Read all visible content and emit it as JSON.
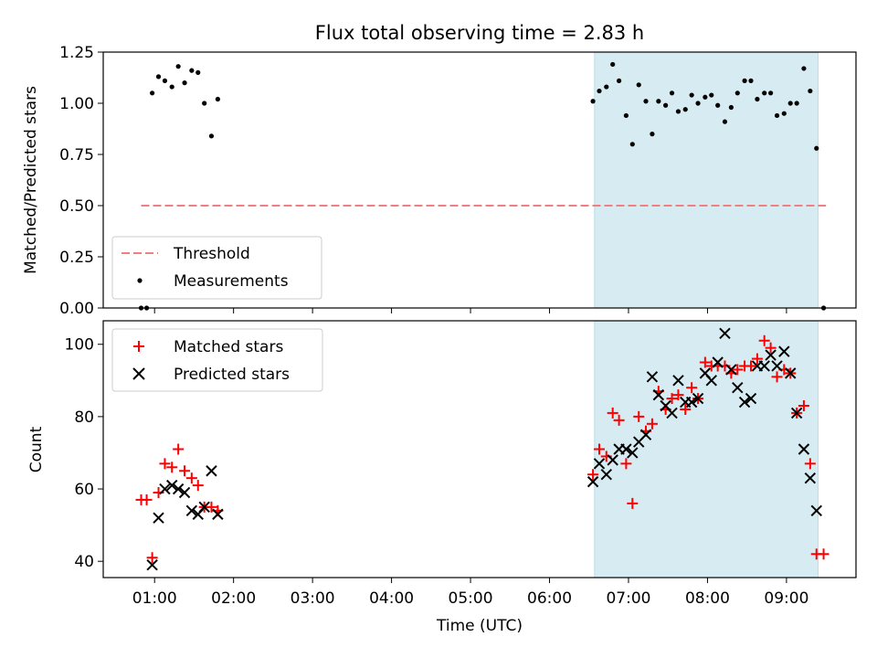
{
  "chart_data": [
    {
      "type": "scatter",
      "panel": "top",
      "title": "Flux total observing time = 2.83 h",
      "xlabel": "",
      "ylabel": "Matched/Predicted stars",
      "ylim": [
        0,
        1.25
      ],
      "yticks": [
        "0.00",
        "0.25",
        "0.50",
        "0.75",
        "1.00",
        "1.25"
      ],
      "shaded_region": {
        "x_start_hours": 6.57,
        "x_end_hours": 9.4,
        "color": "#add8e6"
      },
      "threshold": {
        "name": "Threshold",
        "y": 0.5,
        "x_start_hours": 0.83,
        "x_end_hours": 9.5,
        "color": "#f08080"
      },
      "legend_position": "lower-left",
      "series": [
        {
          "name": "Measurements",
          "color": "#000000",
          "marker": "dot",
          "points": [
            [
              0.83,
              0.0
            ],
            [
              0.9,
              0.0
            ],
            [
              0.97,
              1.05
            ],
            [
              1.05,
              1.13
            ],
            [
              1.13,
              1.11
            ],
            [
              1.22,
              1.08
            ],
            [
              1.3,
              1.18
            ],
            [
              1.38,
              1.1
            ],
            [
              1.47,
              1.16
            ],
            [
              1.55,
              1.15
            ],
            [
              1.63,
              1.0
            ],
            [
              1.72,
              0.84
            ],
            [
              1.8,
              1.02
            ],
            [
              6.55,
              1.01
            ],
            [
              6.63,
              1.06
            ],
            [
              6.72,
              1.08
            ],
            [
              6.8,
              1.19
            ],
            [
              6.88,
              1.11
            ],
            [
              6.97,
              0.94
            ],
            [
              7.05,
              0.8
            ],
            [
              7.13,
              1.09
            ],
            [
              7.22,
              1.01
            ],
            [
              7.3,
              0.85
            ],
            [
              7.38,
              1.01
            ],
            [
              7.47,
              0.99
            ],
            [
              7.55,
              1.05
            ],
            [
              7.63,
              0.96
            ],
            [
              7.72,
              0.97
            ],
            [
              7.8,
              1.04
            ],
            [
              7.88,
              1.0
            ],
            [
              7.97,
              1.03
            ],
            [
              8.05,
              1.04
            ],
            [
              8.13,
              0.99
            ],
            [
              8.22,
              0.91
            ],
            [
              8.3,
              0.98
            ],
            [
              8.38,
              1.05
            ],
            [
              8.47,
              1.11
            ],
            [
              8.55,
              1.11
            ],
            [
              8.63,
              1.02
            ],
            [
              8.72,
              1.05
            ],
            [
              8.8,
              1.05
            ],
            [
              8.88,
              0.94
            ],
            [
              8.97,
              0.95
            ],
            [
              9.05,
              1.0
            ],
            [
              9.13,
              1.0
            ],
            [
              9.22,
              1.17
            ],
            [
              9.3,
              1.06
            ],
            [
              9.38,
              0.78
            ],
            [
              9.47,
              0.0
            ]
          ]
        }
      ]
    },
    {
      "type": "scatter",
      "panel": "bottom",
      "xlabel": "Time (UTC)",
      "ylabel": "Count",
      "ylim": [
        35.5,
        106.5
      ],
      "yticks": [
        "40",
        "60",
        "80",
        "100"
      ],
      "xlim_hours": [
        0.35,
        9.88
      ],
      "xticks": [
        "01:00",
        "02:00",
        "03:00",
        "04:00",
        "05:00",
        "06:00",
        "07:00",
        "08:00",
        "09:00"
      ],
      "shaded_region": {
        "x_start_hours": 6.57,
        "x_end_hours": 9.4,
        "color": "#add8e6"
      },
      "legend_position": "upper-left",
      "series": [
        {
          "name": "Matched stars",
          "color": "#ff0000",
          "marker": "plus",
          "points": [
            [
              0.83,
              57
            ],
            [
              0.9,
              57
            ],
            [
              0.97,
              41
            ],
            [
              1.05,
              59
            ],
            [
              1.13,
              67
            ],
            [
              1.22,
              66
            ],
            [
              1.3,
              71
            ],
            [
              1.38,
              65
            ],
            [
              1.47,
              63
            ],
            [
              1.55,
              61
            ],
            [
              1.63,
              55
            ],
            [
              1.72,
              55
            ],
            [
              1.8,
              54
            ],
            [
              6.55,
              64
            ],
            [
              6.63,
              71
            ],
            [
              6.72,
              69
            ],
            [
              6.8,
              81
            ],
            [
              6.88,
              79
            ],
            [
              6.97,
              67
            ],
            [
              7.05,
              56
            ],
            [
              7.13,
              80
            ],
            [
              7.22,
              76
            ],
            [
              7.3,
              78
            ],
            [
              7.38,
              87
            ],
            [
              7.47,
              82
            ],
            [
              7.55,
              85
            ],
            [
              7.63,
              86
            ],
            [
              7.72,
              82
            ],
            [
              7.8,
              88
            ],
            [
              7.88,
              85
            ],
            [
              7.97,
              95
            ],
            [
              8.05,
              94
            ],
            [
              8.13,
              94
            ],
            [
              8.22,
              94
            ],
            [
              8.3,
              92
            ],
            [
              8.38,
              93
            ],
            [
              8.47,
              94
            ],
            [
              8.55,
              94
            ],
            [
              8.63,
              96
            ],
            [
              8.72,
              101
            ],
            [
              8.8,
              99
            ],
            [
              8.88,
              91
            ],
            [
              8.97,
              93
            ],
            [
              9.05,
              92
            ],
            [
              9.13,
              81
            ],
            [
              9.22,
              83
            ],
            [
              9.3,
              67
            ],
            [
              9.38,
              42
            ],
            [
              9.47,
              42
            ]
          ]
        },
        {
          "name": "Predicted stars",
          "color": "#000000",
          "marker": "x",
          "points": [
            [
              0.97,
              39
            ],
            [
              1.05,
              52
            ],
            [
              1.13,
              60
            ],
            [
              1.22,
              61
            ],
            [
              1.3,
              60
            ],
            [
              1.38,
              59
            ],
            [
              1.47,
              54
            ],
            [
              1.55,
              53
            ],
            [
              1.63,
              55
            ],
            [
              1.72,
              65
            ],
            [
              1.8,
              53
            ],
            [
              6.55,
              62
            ],
            [
              6.63,
              67
            ],
            [
              6.72,
              64
            ],
            [
              6.8,
              68
            ],
            [
              6.88,
              71
            ],
            [
              6.97,
              71
            ],
            [
              7.05,
              70
            ],
            [
              7.13,
              73
            ],
            [
              7.22,
              75
            ],
            [
              7.3,
              91
            ],
            [
              7.38,
              86
            ],
            [
              7.47,
              83
            ],
            [
              7.55,
              81
            ],
            [
              7.63,
              90
            ],
            [
              7.72,
              84
            ],
            [
              7.8,
              84
            ],
            [
              7.88,
              85
            ],
            [
              7.97,
              92
            ],
            [
              8.05,
              90
            ],
            [
              8.13,
              95
            ],
            [
              8.22,
              103
            ],
            [
              8.3,
              93
            ],
            [
              8.38,
              88
            ],
            [
              8.47,
              84
            ],
            [
              8.55,
              85
            ],
            [
              8.63,
              94
            ],
            [
              8.72,
              94
            ],
            [
              8.8,
              97
            ],
            [
              8.88,
              94
            ],
            [
              8.97,
              98
            ],
            [
              9.05,
              92
            ],
            [
              9.13,
              81
            ],
            [
              9.22,
              71
            ],
            [
              9.3,
              63
            ],
            [
              9.38,
              54
            ]
          ]
        }
      ]
    }
  ]
}
